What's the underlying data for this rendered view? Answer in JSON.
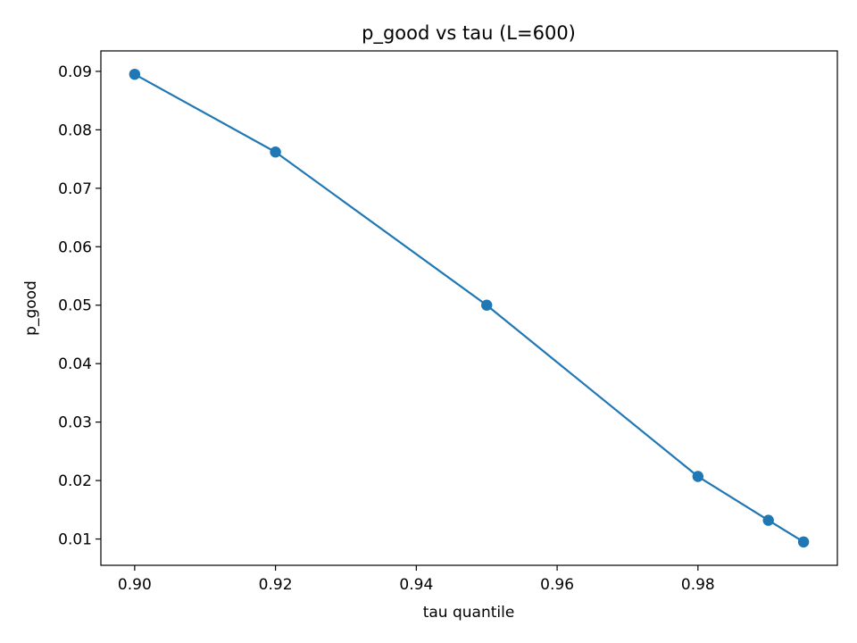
{
  "chart_data": {
    "type": "line",
    "title": "p_good vs tau (L=600)",
    "xlabel": "tau quantile",
    "ylabel": "p_good",
    "x": [
      0.9,
      0.92,
      0.95,
      0.98,
      0.99,
      0.995
    ],
    "series": [
      {
        "values": [
          0.0895,
          0.0762,
          0.05,
          0.0207,
          0.0132,
          0.0095
        ],
        "color": "#1f77b4"
      }
    ],
    "xlim": [
      0.8952,
      0.9998
    ],
    "ylim": [
      0.0055,
      0.0935
    ],
    "xticks": [
      "0.90",
      "0.92",
      "0.94",
      "0.96",
      "0.98"
    ],
    "yticks": [
      "0.01",
      "0.02",
      "0.03",
      "0.04",
      "0.05",
      "0.06",
      "0.07",
      "0.08",
      "0.09"
    ],
    "marker": "circle",
    "grid": false,
    "legend": "none"
  }
}
